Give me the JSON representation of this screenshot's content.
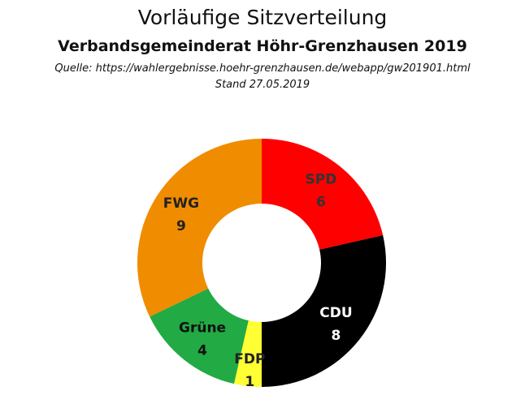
{
  "header": {
    "title": "Vorläufige Sitzverteilung",
    "subtitle": "Verbandsgemeinderat Höhr-Grenzhausen 2019",
    "source": "Quelle: https://wahlergebnisse.hoehr-grenzhausen.de/webapp/gw201901.html",
    "stand": "Stand 27.05.2019"
  },
  "chart_data": {
    "type": "pie",
    "variant": "donut",
    "title": "Vorläufige Sitzverteilung",
    "subtitle": "Verbandsgemeinderat Höhr-Grenzhausen 2019",
    "categories": [
      "SPD",
      "CDU",
      "FDP",
      "Grüne",
      "FWG"
    ],
    "values": [
      6,
      8,
      1,
      4,
      9
    ],
    "colors": [
      "#ff0000",
      "#000000",
      "#ffff33",
      "#22aa44",
      "#f08c00"
    ],
    "label_colors": [
      "#333333",
      "#ffffff",
      "#222222",
      "#111111",
      "#222222"
    ],
    "start_angle_deg": 0,
    "direction": "clockwise",
    "legend": "none",
    "data_labels": "category and value inside slices"
  }
}
